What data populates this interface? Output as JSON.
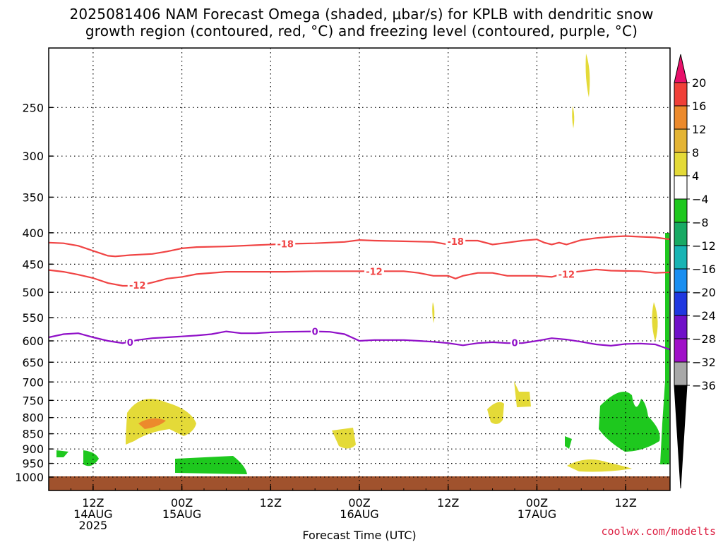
{
  "title_line1": "2025081406 NAM Forecast Omega (shaded, μbar/s) for KPLB with dendritic snow",
  "title_line2": "growth region (contoured, red, °C) and freezing level (contoured, purple, °C)",
  "watermark": "coolwx.com/modelts",
  "chart_data": {
    "type": "time-height cross section",
    "xlabel": "Forecast Time (UTC)",
    "x_ticks": [
      {
        "hours": 6,
        "line1": "12Z",
        "line2": "14AUG",
        "line3": "2025"
      },
      {
        "hours": 18,
        "line1": "00Z",
        "line2": "15AUG",
        "line3": ""
      },
      {
        "hours": 30,
        "line1": "12Z",
        "line2": "",
        "line3": ""
      },
      {
        "hours": 42,
        "line1": "00Z",
        "line2": "16AUG",
        "line3": ""
      },
      {
        "hours": 54,
        "line1": "12Z",
        "line2": "",
        "line3": ""
      },
      {
        "hours": 66,
        "line1": "00Z",
        "line2": "17AUG",
        "line3": ""
      },
      {
        "hours": 78,
        "line1": "12Z",
        "line2": "",
        "line3": ""
      }
    ],
    "x_range_hours": [
      0,
      84
    ],
    "y_pressure_ticks": [
      250,
      300,
      350,
      400,
      450,
      500,
      550,
      600,
      650,
      700,
      750,
      800,
      850,
      900,
      950,
      1000
    ],
    "y_range_hpa": [
      200,
      1000
    ],
    "grid": true,
    "colorbar": {
      "labels": [
        "20",
        "16",
        "12",
        "8",
        "4",
        "−4",
        "−8",
        "−12",
        "−16",
        "−20",
        "−24",
        "−28",
        "−32",
        "−36"
      ],
      "colors": [
        "#e8106a",
        "#f04038",
        "#ec8a2c",
        "#e4b434",
        "#e4da38",
        "#ffffff",
        "#1ec81e",
        "#18aa64",
        "#18b4b4",
        "#1a8ef0",
        "#2038e0",
        "#7010c8",
        "#a010c8",
        "#a8a8a8",
        "#000000"
      ]
    },
    "contours": [
      {
        "label": "-18",
        "color": "#f04444",
        "points": [
          [
            0,
            415
          ],
          [
            2,
            416
          ],
          [
            4,
            420
          ],
          [
            6,
            428
          ],
          [
            8,
            436
          ],
          [
            9,
            437
          ],
          [
            11,
            435
          ],
          [
            14,
            433
          ],
          [
            16,
            429
          ],
          [
            18,
            424
          ],
          [
            20,
            422
          ],
          [
            24,
            421
          ],
          [
            28,
            419
          ],
          [
            30,
            418
          ],
          [
            32,
            417
          ],
          [
            36,
            416
          ],
          [
            40,
            414
          ],
          [
            42,
            411
          ],
          [
            44,
            412
          ],
          [
            48,
            413
          ],
          [
            52,
            414
          ],
          [
            54,
            418
          ],
          [
            56,
            412
          ],
          [
            58,
            412
          ],
          [
            60,
            418
          ],
          [
            62,
            415
          ],
          [
            64,
            412
          ],
          [
            66,
            410
          ],
          [
            67,
            415
          ],
          [
            68,
            418
          ],
          [
            69,
            415
          ],
          [
            70,
            418
          ],
          [
            72,
            411
          ],
          [
            74,
            408
          ],
          [
            76,
            406
          ],
          [
            78,
            405
          ],
          [
            80,
            406
          ],
          [
            82,
            407
          ],
          [
            84,
            410
          ]
        ],
        "label_at": [
          [
            32,
            417
          ],
          [
            55,
            413
          ]
        ]
      },
      {
        "label": "-12",
        "color": "#f04444",
        "points": [
          [
            0,
            460
          ],
          [
            2,
            463
          ],
          [
            4,
            468
          ],
          [
            6,
            474
          ],
          [
            8,
            483
          ],
          [
            10,
            488
          ],
          [
            12,
            488
          ],
          [
            14,
            482
          ],
          [
            16,
            475
          ],
          [
            18,
            472
          ],
          [
            20,
            467
          ],
          [
            24,
            463
          ],
          [
            28,
            463
          ],
          [
            32,
            463
          ],
          [
            36,
            462
          ],
          [
            40,
            462
          ],
          [
            44,
            462
          ],
          [
            48,
            462
          ],
          [
            50,
            465
          ],
          [
            52,
            470
          ],
          [
            54,
            470
          ],
          [
            55,
            475
          ],
          [
            56,
            470
          ],
          [
            58,
            465
          ],
          [
            60,
            465
          ],
          [
            62,
            470
          ],
          [
            64,
            470
          ],
          [
            66,
            470
          ],
          [
            68,
            472
          ],
          [
            70,
            465
          ],
          [
            72,
            462
          ],
          [
            74,
            459
          ],
          [
            76,
            461
          ],
          [
            80,
            462
          ],
          [
            82,
            465
          ],
          [
            84,
            464
          ]
        ],
        "label_at": [
          [
            12,
            487
          ],
          [
            44,
            462
          ],
          [
            70,
            467
          ]
        ]
      },
      {
        "label": "0",
        "color": "#9010c8",
        "points": [
          [
            0,
            592
          ],
          [
            2,
            585
          ],
          [
            4,
            583
          ],
          [
            6,
            592
          ],
          [
            8,
            600
          ],
          [
            10,
            605
          ],
          [
            12,
            598
          ],
          [
            14,
            594
          ],
          [
            16,
            592
          ],
          [
            18,
            590
          ],
          [
            20,
            588
          ],
          [
            22,
            585
          ],
          [
            24,
            579
          ],
          [
            26,
            583
          ],
          [
            28,
            583
          ],
          [
            30,
            581
          ],
          [
            32,
            580
          ],
          [
            36,
            579
          ],
          [
            38,
            580
          ],
          [
            40,
            585
          ],
          [
            42,
            600
          ],
          [
            44,
            598
          ],
          [
            48,
            598
          ],
          [
            50,
            600
          ],
          [
            52,
            602
          ],
          [
            54,
            605
          ],
          [
            56,
            610
          ],
          [
            58,
            605
          ],
          [
            60,
            603
          ],
          [
            62,
            605
          ],
          [
            64,
            605
          ],
          [
            66,
            600
          ],
          [
            68,
            594
          ],
          [
            70,
            597
          ],
          [
            72,
            602
          ],
          [
            74,
            608
          ],
          [
            76,
            611
          ],
          [
            78,
            607
          ],
          [
            80,
            606
          ],
          [
            82,
            608
          ],
          [
            84,
            620
          ]
        ],
        "label_at": [
          [
            11,
            603
          ],
          [
            36,
            579
          ],
          [
            63,
            604
          ]
        ]
      }
    ]
  }
}
